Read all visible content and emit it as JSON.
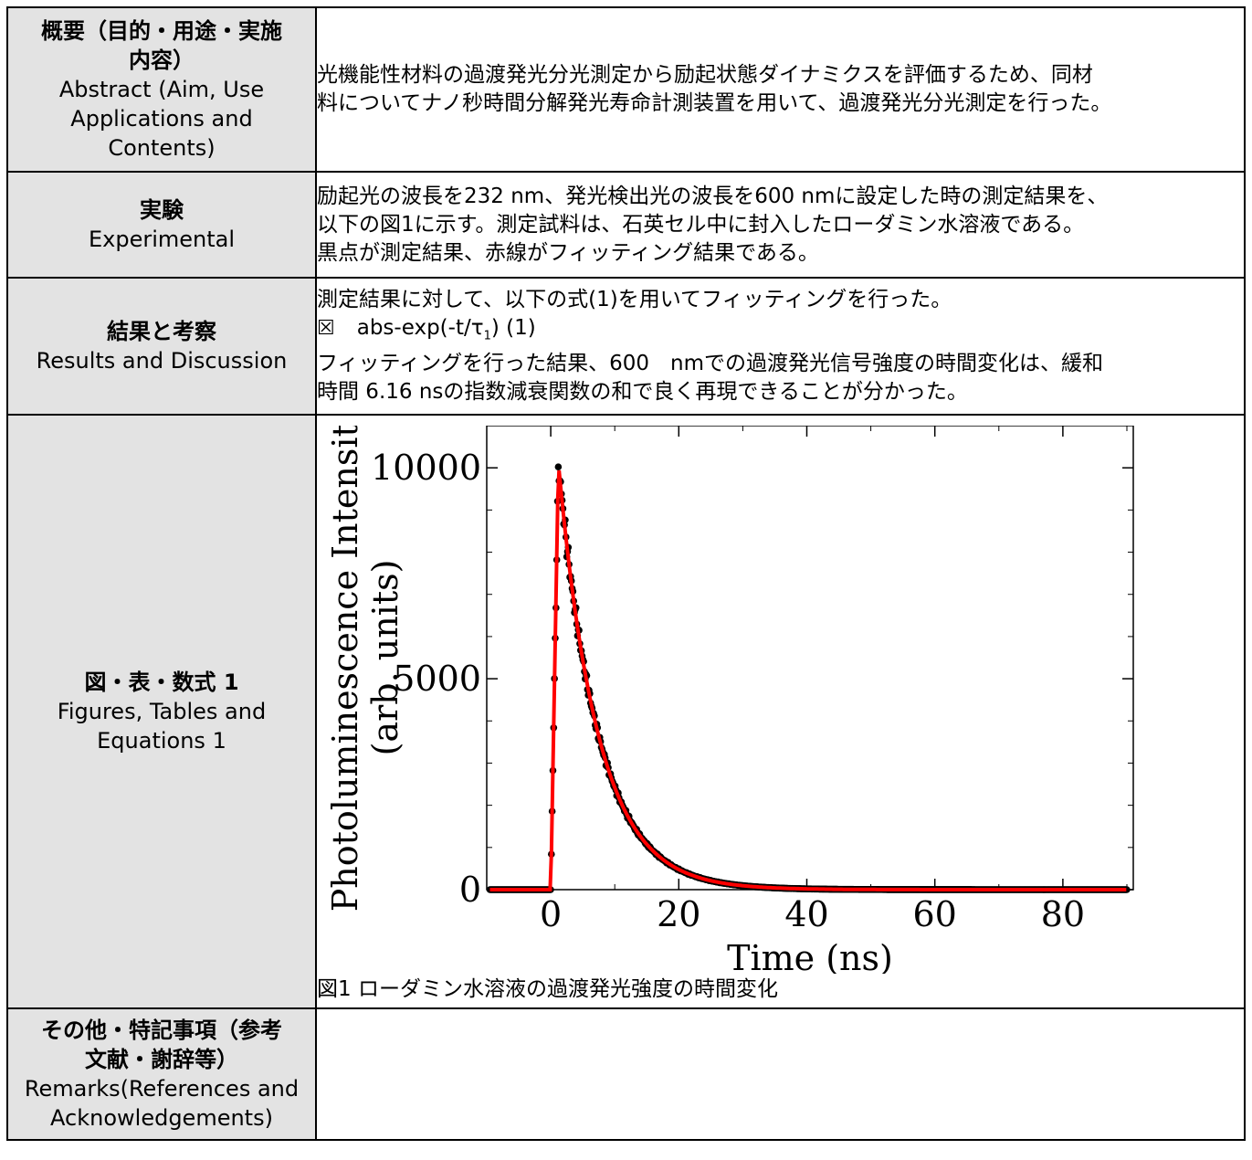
{
  "rows": [
    {
      "header_jp": [
        "概要（目的・用途・実施",
        "内容）"
      ],
      "header_en": [
        "Abstract (Aim, Use",
        "Applications and",
        "Contents)"
      ],
      "body": [
        "光機能性材料の過渡発光分光測定から励起状態ダイナミクスを評価するため、同材",
        "料についてナノ秒時間分解発光寿命計測装置を用いて、過渡発光分光測定を行った。"
      ]
    },
    {
      "header_jp": [
        "実験"
      ],
      "header_en": [
        "Experimental"
      ],
      "body": [
        "励起光の波長を232 nm、発光検出光の波長を600 nmに設定した時の測定結果を、",
        "以下の図1に示す。測定試料は、石英セル中に封入したローダミン水溶液である。",
        "黒点が測定結果、赤線がフィッティング結果である。"
      ]
    },
    {
      "header_jp": [
        "結果と考察"
      ],
      "header_en": [
        "Results and Discussion"
      ],
      "body_before": "測定結果に対して、以下の式(1)を用いてフィッティングを行った。",
      "equation": {
        "box": "☒",
        "text": "abs-exp(-t/τ",
        "subscript": "1",
        "suffix": ") (1)"
      },
      "body_after": [
        "フィッティングを行った結果、600　nmでの過渡発光信号強度の時間変化は、緩和",
        "時間 6.16 nsの指数減衰関数の和で良く再現できることが分かった。"
      ]
    },
    {
      "header_jp": [
        "図・表・数式 1"
      ],
      "header_en": [
        "Figures, Tables and",
        "Equations 1"
      ],
      "caption": "図1 ローダミン水溶液の過渡発光強度の時間変化"
    },
    {
      "header_jp": [
        "その他・特記事項（参考",
        "文献・謝辞等）"
      ],
      "header_en": [
        "Remarks(References and",
        "Acknowledgements)"
      ]
    }
  ],
  "chart_data": {
    "type": "scatter",
    "xlabel": "Time (ns)",
    "ylabel": [
      "Photoluminescence Intensity",
      "(arb. units)"
    ],
    "xlim": [
      -10,
      91
    ],
    "ylim": [
      0,
      11000
    ],
    "xticks": [
      0,
      20,
      40,
      60,
      80
    ],
    "yticks": [
      0,
      5000,
      10000
    ],
    "grid": false,
    "legend": "none",
    "series": [
      {
        "role": "measured",
        "color": "#000000",
        "model": "rise-decay",
        "t0": 0,
        "peak": 10100,
        "peak_time": 1.2,
        "tau": 6.16
      },
      {
        "role": "fit",
        "color": "#ff0000",
        "model": "rise-decay",
        "t0": 0,
        "peak": 10100,
        "peak_time": 1.2,
        "tau": 6.16
      }
    ]
  }
}
